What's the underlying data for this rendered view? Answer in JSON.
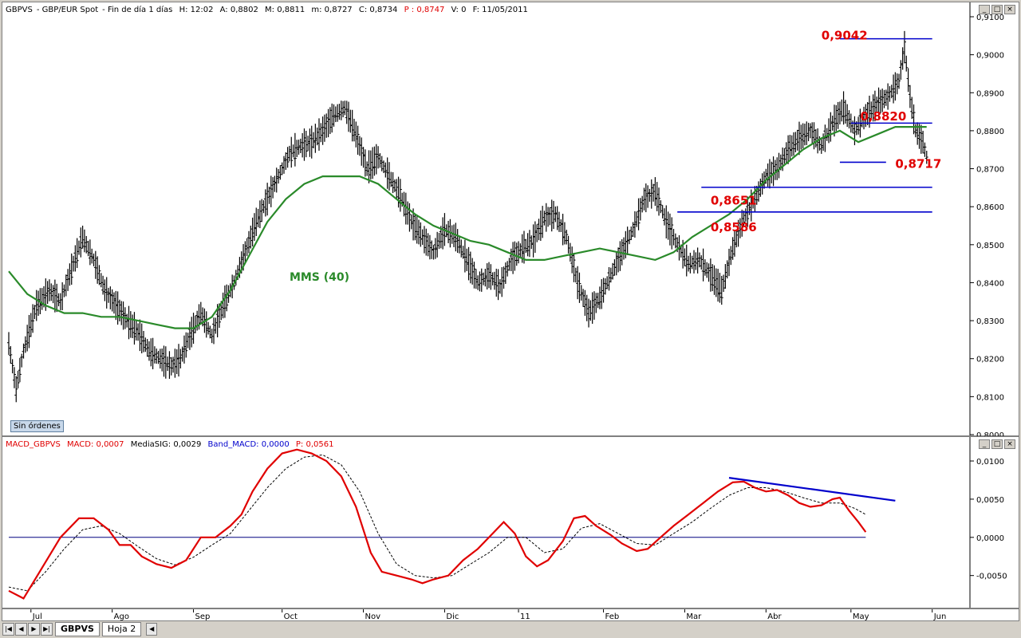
{
  "main_header": {
    "symbol": "GBPVS",
    "instrument": "GBP/EUR Spot",
    "period": "Fin de día 1 días",
    "high": "H: 12:02",
    "open": "A: 0,8802",
    "max": "M: 0,8811",
    "min": "m: 0,8727",
    "close": "C: 0,8734",
    "price": "P : 0,8747",
    "volume": "V: 0",
    "date": "F: 11/05/2011"
  },
  "macd_header": {
    "name": "MACD_GBPVS",
    "macd": "MACD: 0,0007",
    "signal": "MediaSIG: 0,0029",
    "band": "Band_MACD: 0,0000",
    "p": "P: 0,0561"
  },
  "sin_ordenes": "Sin órdenes",
  "labels": {
    "mms": "MMS (40)",
    "l9042": "0,9042",
    "l8820": "0,8820",
    "l8717": "0,8717",
    "l8651": "0,8651",
    "l8586": "0,8586"
  },
  "bottom": {
    "tab_active": "GBPVS",
    "tab_other": "Hoja 2",
    "nav_first": "|◀",
    "nav_prev": "◀",
    "nav_next": "▶",
    "nav_last": "▶|",
    "scroll_left": "◀"
  },
  "colors": {
    "price_bars": "#000000",
    "mms": "#2a8a2a",
    "macd": "#e00000",
    "signal": "#000000",
    "levels": "#0000cc",
    "labels": "#e00000"
  },
  "chart_data": [
    {
      "type": "ohlc",
      "title": "GBPVS - GBP/EUR Spot",
      "ylim": [
        0.8,
        0.91
      ],
      "y_ticks": [
        "0,8000",
        "0,8100",
        "0,8200",
        "0,8300",
        "0,8400",
        "0,8500",
        "0,8600",
        "0,8700",
        "0,8800",
        "0,8900",
        "0,9000",
        "0,9100"
      ],
      "x_months": [
        "Jul",
        "Ago",
        "Sep",
        "Oct",
        "Nov",
        "Dic",
        "11",
        "Feb",
        "Mar",
        "Abr",
        "May",
        "Jun"
      ],
      "price_anchors": [
        [
          0,
          0.824
        ],
        [
          4,
          0.812
        ],
        [
          8,
          0.822
        ],
        [
          15,
          0.834
        ],
        [
          22,
          0.838
        ],
        [
          28,
          0.835
        ],
        [
          35,
          0.845
        ],
        [
          40,
          0.852
        ],
        [
          46,
          0.846
        ],
        [
          52,
          0.838
        ],
        [
          58,
          0.834
        ],
        [
          64,
          0.83
        ],
        [
          70,
          0.827
        ],
        [
          76,
          0.822
        ],
        [
          82,
          0.82
        ],
        [
          88,
          0.818
        ],
        [
          93,
          0.82
        ],
        [
          98,
          0.826
        ],
        [
          104,
          0.832
        ],
        [
          110,
          0.826
        ],
        [
          116,
          0.834
        ],
        [
          122,
          0.84
        ],
        [
          128,
          0.848
        ],
        [
          134,
          0.856
        ],
        [
          140,
          0.862
        ],
        [
          146,
          0.868
        ],
        [
          152,
          0.874
        ],
        [
          158,
          0.876
        ],
        [
          164,
          0.877
        ],
        [
          170,
          0.88
        ],
        [
          176,
          0.884
        ],
        [
          182,
          0.886
        ],
        [
          188,
          0.879
        ],
        [
          194,
          0.87
        ],
        [
          200,
          0.873
        ],
        [
          206,
          0.868
        ],
        [
          212,
          0.863
        ],
        [
          218,
          0.856
        ],
        [
          224,
          0.852
        ],
        [
          230,
          0.848
        ],
        [
          236,
          0.854
        ],
        [
          242,
          0.852
        ],
        [
          248,
          0.846
        ],
        [
          254,
          0.84
        ],
        [
          260,
          0.842
        ],
        [
          266,
          0.839
        ],
        [
          272,
          0.846
        ],
        [
          278,
          0.849
        ],
        [
          284,
          0.851
        ],
        [
          290,
          0.857
        ],
        [
          296,
          0.858
        ],
        [
          302,
          0.852
        ],
        [
          308,
          0.84
        ],
        [
          314,
          0.832
        ],
        [
          320,
          0.836
        ],
        [
          326,
          0.842
        ],
        [
          332,
          0.848
        ],
        [
          338,
          0.854
        ],
        [
          344,
          0.862
        ],
        [
          350,
          0.864
        ],
        [
          356,
          0.856
        ],
        [
          362,
          0.85
        ],
        [
          368,
          0.845
        ],
        [
          374,
          0.846
        ],
        [
          380,
          0.842
        ],
        [
          386,
          0.838
        ],
        [
          392,
          0.849
        ],
        [
          398,
          0.857
        ],
        [
          404,
          0.862
        ],
        [
          410,
          0.868
        ],
        [
          416,
          0.87
        ],
        [
          422,
          0.875
        ],
        [
          428,
          0.878
        ],
        [
          434,
          0.88
        ],
        [
          440,
          0.876
        ],
        [
          446,
          0.882
        ],
        [
          452,
          0.886
        ],
        [
          458,
          0.88
        ],
        [
          464,
          0.884
        ],
        [
          470,
          0.887
        ],
        [
          476,
          0.889
        ],
        [
          482,
          0.893
        ],
        [
          485,
          0.902
        ],
        [
          488,
          0.889
        ],
        [
          491,
          0.88
        ],
        [
          495,
          0.877
        ],
        [
          497,
          0.873
        ]
      ],
      "mms_anchors": [
        [
          0,
          0.843
        ],
        [
          10,
          0.837
        ],
        [
          20,
          0.834
        ],
        [
          30,
          0.832
        ],
        [
          40,
          0.832
        ],
        [
          50,
          0.831
        ],
        [
          60,
          0.831
        ],
        [
          70,
          0.83
        ],
        [
          80,
          0.829
        ],
        [
          90,
          0.828
        ],
        [
          100,
          0.828
        ],
        [
          110,
          0.831
        ],
        [
          120,
          0.838
        ],
        [
          130,
          0.847
        ],
        [
          140,
          0.856
        ],
        [
          150,
          0.862
        ],
        [
          160,
          0.866
        ],
        [
          170,
          0.868
        ],
        [
          180,
          0.868
        ],
        [
          190,
          0.868
        ],
        [
          200,
          0.866
        ],
        [
          210,
          0.862
        ],
        [
          220,
          0.858
        ],
        [
          230,
          0.855
        ],
        [
          240,
          0.853
        ],
        [
          250,
          0.851
        ],
        [
          260,
          0.85
        ],
        [
          270,
          0.848
        ],
        [
          280,
          0.846
        ],
        [
          290,
          0.846
        ],
        [
          300,
          0.847
        ],
        [
          310,
          0.848
        ],
        [
          320,
          0.849
        ],
        [
          330,
          0.848
        ],
        [
          340,
          0.847
        ],
        [
          350,
          0.846
        ],
        [
          360,
          0.848
        ],
        [
          370,
          0.852
        ],
        [
          380,
          0.855
        ],
        [
          390,
          0.858
        ],
        [
          400,
          0.862
        ],
        [
          410,
          0.867
        ],
        [
          420,
          0.871
        ],
        [
          430,
          0.875
        ],
        [
          440,
          0.878
        ],
        [
          450,
          0.88
        ],
        [
          460,
          0.877
        ],
        [
          470,
          0.879
        ],
        [
          480,
          0.881
        ],
        [
          490,
          0.881
        ],
        [
          497,
          0.881
        ]
      ],
      "levels": [
        {
          "value": 0.9042,
          "label": "0,9042"
        },
        {
          "value": 0.882,
          "label": "0,8820"
        },
        {
          "value": 0.8717,
          "label": "0,8717"
        },
        {
          "value": 0.8651,
          "label": "0,8651"
        },
        {
          "value": 0.8586,
          "label": "0,8586"
        }
      ],
      "series": [
        {
          "name": "MMS (40)",
          "type": "line"
        }
      ]
    },
    {
      "type": "line",
      "title": "MACD_GBPVS",
      "ylim": [
        -0.009,
        0.0123
      ],
      "y_ticks": [
        "0,0100",
        "0,0050",
        "0,0000",
        "-0,0050"
      ],
      "macd_anchors": [
        [
          0,
          -0.007
        ],
        [
          8,
          -0.008
        ],
        [
          18,
          -0.004
        ],
        [
          28,
          0
        ],
        [
          38,
          0.0025
        ],
        [
          46,
          0.0025
        ],
        [
          54,
          0.001
        ],
        [
          60,
          -0.001
        ],
        [
          66,
          -0.001
        ],
        [
          72,
          -0.0025
        ],
        [
          80,
          -0.0035
        ],
        [
          88,
          -0.004
        ],
        [
          96,
          -0.003
        ],
        [
          104,
          0
        ],
        [
          112,
          0
        ],
        [
          120,
          0.0015
        ],
        [
          126,
          0.003
        ],
        [
          132,
          0.006
        ],
        [
          140,
          0.009
        ],
        [
          148,
          0.011
        ],
        [
          156,
          0.0115
        ],
        [
          164,
          0.011
        ],
        [
          172,
          0.01
        ],
        [
          180,
          0.008
        ],
        [
          188,
          0.004
        ],
        [
          196,
          -0.002
        ],
        [
          202,
          -0.0045
        ],
        [
          210,
          -0.005
        ],
        [
          218,
          -0.0055
        ],
        [
          224,
          -0.006
        ],
        [
          230,
          -0.0055
        ],
        [
          238,
          -0.005
        ],
        [
          246,
          -0.003
        ],
        [
          254,
          -0.0015
        ],
        [
          262,
          0.0005
        ],
        [
          268,
          0.002
        ],
        [
          274,
          0.0005
        ],
        [
          280,
          -0.0025
        ],
        [
          286,
          -0.0038
        ],
        [
          292,
          -0.003
        ],
        [
          300,
          -0.0005
        ],
        [
          306,
          0.0025
        ],
        [
          312,
          0.0028
        ],
        [
          318,
          0.0015
        ],
        [
          326,
          0.0003
        ],
        [
          332,
          -0.0008
        ],
        [
          340,
          -0.0018
        ],
        [
          346,
          -0.0015
        ],
        [
          352,
          -0.0002
        ],
        [
          360,
          0.0015
        ],
        [
          368,
          0.003
        ],
        [
          376,
          0.0045
        ],
        [
          384,
          0.006
        ],
        [
          392,
          0.0072
        ],
        [
          398,
          0.0073
        ],
        [
          404,
          0.0065
        ],
        [
          410,
          0.006
        ],
        [
          416,
          0.0062
        ],
        [
          422,
          0.0055
        ],
        [
          428,
          0.0045
        ],
        [
          434,
          0.004
        ],
        [
          440,
          0.0042
        ],
        [
          446,
          0.005
        ],
        [
          450,
          0.0052
        ],
        [
          455,
          0.0035
        ],
        [
          460,
          0.002
        ],
        [
          464,
          0.0007
        ]
      ],
      "signal_anchors": [
        [
          0,
          -0.0065
        ],
        [
          10,
          -0.007
        ],
        [
          20,
          -0.0045
        ],
        [
          30,
          -0.0015
        ],
        [
          40,
          0.001
        ],
        [
          50,
          0.0015
        ],
        [
          60,
          0.0005
        ],
        [
          70,
          -0.0012
        ],
        [
          80,
          -0.0028
        ],
        [
          90,
          -0.0036
        ],
        [
          100,
          -0.0026
        ],
        [
          110,
          -0.001
        ],
        [
          120,
          0.0005
        ],
        [
          130,
          0.0035
        ],
        [
          140,
          0.0065
        ],
        [
          150,
          0.009
        ],
        [
          160,
          0.0105
        ],
        [
          170,
          0.0108
        ],
        [
          180,
          0.0095
        ],
        [
          190,
          0.006
        ],
        [
          200,
          0.0005
        ],
        [
          210,
          -0.0035
        ],
        [
          220,
          -0.005
        ],
        [
          230,
          -0.0053
        ],
        [
          240,
          -0.005
        ],
        [
          250,
          -0.0035
        ],
        [
          260,
          -0.002
        ],
        [
          270,
          0.0
        ],
        [
          280,
          0.0
        ],
        [
          290,
          -0.002
        ],
        [
          300,
          -0.0015
        ],
        [
          310,
          0.0012
        ],
        [
          320,
          0.0018
        ],
        [
          330,
          0.0005
        ],
        [
          340,
          -0.0008
        ],
        [
          350,
          -0.001
        ],
        [
          360,
          0.0005
        ],
        [
          370,
          0.002
        ],
        [
          380,
          0.0038
        ],
        [
          390,
          0.0055
        ],
        [
          400,
          0.0065
        ],
        [
          410,
          0.0065
        ],
        [
          420,
          0.006
        ],
        [
          430,
          0.0052
        ],
        [
          440,
          0.0045
        ],
        [
          450,
          0.0045
        ],
        [
          458,
          0.0038
        ],
        [
          464,
          0.003
        ]
      ],
      "trendline": [
        [
          390,
          0.0078
        ],
        [
          480,
          0.0048
        ]
      ],
      "zero_line": 0,
      "series": [
        {
          "name": "MACD",
          "type": "line"
        },
        {
          "name": "MediaSIG",
          "type": "line"
        },
        {
          "name": "Band_MACD",
          "type": "line"
        }
      ]
    }
  ]
}
